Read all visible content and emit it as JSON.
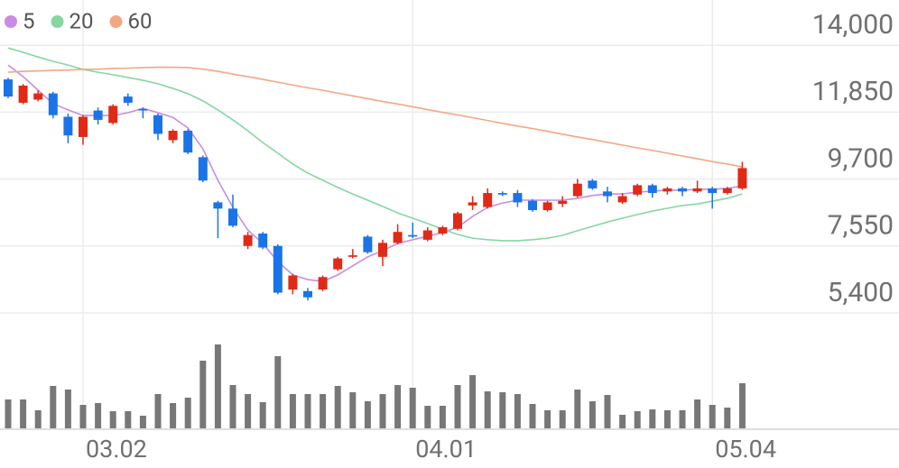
{
  "chart_data": {
    "type": "candlestick",
    "categories": [
      null,
      null,
      null,
      null,
      null,
      "03.02",
      null,
      null,
      null,
      null,
      null,
      null,
      null,
      null,
      null,
      null,
      null,
      null,
      null,
      null,
      null,
      null,
      null,
      null,
      null,
      null,
      null,
      "04.01",
      null,
      null,
      null,
      null,
      null,
      null,
      null,
      null,
      null,
      null,
      null,
      null,
      null,
      null,
      null,
      null,
      null,
      null,
      null,
      "05.04",
      null,
      null
    ],
    "open": [
      12900,
      12150,
      12250,
      12450,
      11700,
      11050,
      11900,
      11500,
      12350,
      11950,
      11750,
      10950,
      11250,
      10400,
      8950,
      8750,
      7550,
      7950,
      7550,
      6150,
      6100,
      6150,
      6800,
      7200,
      7850,
      7200,
      7650,
      7900,
      7750,
      7950,
      8100,
      8850,
      8800,
      9250,
      9250,
      9000,
      8700,
      8900,
      9150,
      9650,
      9300,
      8950,
      9200,
      9500,
      9300,
      9400,
      9300,
      9400,
      9250,
      9400
    ],
    "high": [
      12950,
      12750,
      12550,
      12500,
      11800,
      11750,
      12000,
      12100,
      12450,
      12000,
      11800,
      11300,
      11300,
      10450,
      9000,
      9200,
      8000,
      8000,
      7600,
      6650,
      6200,
      6600,
      7200,
      7450,
      7900,
      7750,
      8250,
      8300,
      8150,
      8200,
      8650,
      9150,
      9400,
      9300,
      9350,
      9050,
      9000,
      9150,
      9700,
      9700,
      9450,
      9250,
      9550,
      9550,
      9450,
      9450,
      9650,
      9450,
      9450,
      10250
    ],
    "low": [
      12300,
      12100,
      12200,
      11650,
      10850,
      10800,
      11450,
      11450,
      12050,
      11650,
      10950,
      10850,
      10500,
      9600,
      7800,
      8150,
      7450,
      7450,
      6000,
      6000,
      5800,
      6100,
      6750,
      7150,
      7300,
      6900,
      7600,
      7800,
      7700,
      7900,
      8050,
      8700,
      8750,
      9150,
      8800,
      8650,
      8650,
      8800,
      9100,
      9350,
      8950,
      8900,
      9150,
      9100,
      9200,
      9150,
      9250,
      8750,
      9200,
      9350
    ],
    "close": [
      12350,
      12700,
      12450,
      11750,
      11100,
      11700,
      11600,
      12050,
      12150,
      11900,
      11150,
      11250,
      10550,
      9650,
      8750,
      8200,
      7900,
      7500,
      6050,
      6600,
      5900,
      6550,
      7150,
      7250,
      7350,
      7650,
      8000,
      7850,
      8050,
      8150,
      8600,
      8950,
      9250,
      9200,
      8950,
      8700,
      8950,
      9000,
      9550,
      9400,
      9150,
      9150,
      9500,
      9250,
      9400,
      9300,
      9400,
      9250,
      9400,
      10050
    ],
    "volume": [
      32,
      32,
      20,
      47,
      43,
      26,
      28,
      19,
      19,
      14,
      38,
      28,
      34,
      75,
      93,
      48,
      38,
      29,
      80,
      38,
      38,
      38,
      47,
      40,
      30,
      38,
      48,
      45,
      25,
      25,
      48,
      59,
      41,
      40,
      38,
      27,
      20,
      20,
      43,
      30,
      37,
      15,
      19,
      21,
      20,
      20,
      32,
      26,
      23,
      50
    ],
    "up_color": "#e02a17",
    "down_color": "#1a74e8",
    "volume_color": "#777777",
    "series": [
      {
        "name": "5",
        "color": "#c98be3",
        "values": [
          13360,
          12990,
          12550,
          12120,
          11920,
          11740,
          11740,
          11740,
          11830,
          11970,
          11830,
          11680,
          11340,
          10670,
          9660,
          8790,
          8060,
          7630,
          7050,
          6620,
          6470,
          6410,
          6620,
          6910,
          7200,
          7400,
          7630,
          7750,
          7860,
          7980,
          8150,
          8500,
          8790,
          8930,
          9020,
          9020,
          9020,
          9020,
          9080,
          9170,
          9220,
          9220,
          9280,
          9310,
          9340,
          9340,
          9370,
          9370,
          9400,
          9480
        ]
      },
      {
        "name": "20",
        "color": "#86d6a2",
        "values": [
          13910,
          13770,
          13620,
          13480,
          13360,
          13220,
          13130,
          13050,
          12960,
          12870,
          12760,
          12610,
          12440,
          12210,
          11920,
          11600,
          11250,
          10870,
          10530,
          10180,
          9890,
          9660,
          9430,
          9220,
          9020,
          8820,
          8610,
          8440,
          8270,
          8090,
          7920,
          7800,
          7750,
          7720,
          7720,
          7750,
          7800,
          7890,
          8040,
          8180,
          8320,
          8440,
          8560,
          8670,
          8760,
          8850,
          8900,
          8990,
          9080,
          9220
        ]
      },
      {
        "name": "60",
        "color": "#f4a783",
        "values": [
          13130,
          13160,
          13170,
          13190,
          13200,
          13220,
          13230,
          13250,
          13260,
          13280,
          13290,
          13290,
          13280,
          13230,
          13160,
          13070,
          12990,
          12900,
          12810,
          12720,
          12630,
          12550,
          12460,
          12370,
          12280,
          12190,
          12110,
          12020,
          11930,
          11840,
          11760,
          11670,
          11580,
          11490,
          11400,
          11320,
          11230,
          11140,
          11050,
          10970,
          10880,
          10790,
          10700,
          10620,
          10530,
          10440,
          10350,
          10260,
          10180,
          10090
        ]
      }
    ],
    "ylim": [
      5000,
      15450
    ],
    "yticks": [
      {
        "value": 5400,
        "label": "5,400"
      },
      {
        "value": 7550,
        "label": "7,550"
      },
      {
        "value": 9700,
        "label": "9,700"
      },
      {
        "value": 11850,
        "label": "11,850"
      },
      {
        "value": 14000,
        "label": "14,000"
      }
    ],
    "grid": true
  }
}
